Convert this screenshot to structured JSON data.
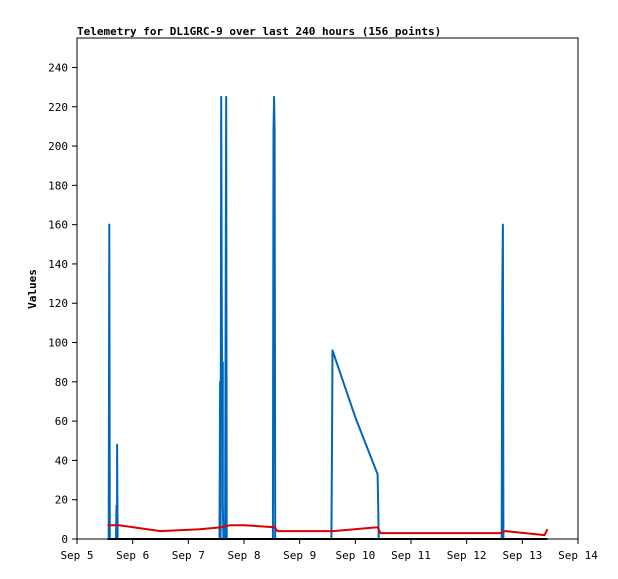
{
  "chart_data": {
    "type": "line",
    "title": "Telemetry for DL1GRC-9 over last 240 hours (156 points)",
    "xlabel": "",
    "ylabel": "Values",
    "ylim": [
      0,
      255
    ],
    "xlim": [
      0,
      9
    ],
    "y_ticks": [
      0,
      20,
      40,
      60,
      80,
      100,
      120,
      140,
      160,
      180,
      200,
      220,
      240
    ],
    "x_ticks": [
      {
        "value": 0,
        "label": "Sep 5"
      },
      {
        "value": 1,
        "label": "Sep 6"
      },
      {
        "value": 2,
        "label": "Sep 7"
      },
      {
        "value": 3,
        "label": "Sep 8"
      },
      {
        "value": 4,
        "label": "Sep 9"
      },
      {
        "value": 5,
        "label": "Sep 10"
      },
      {
        "value": 6,
        "label": "Sep 11"
      },
      {
        "value": 7,
        "label": "Sep 12"
      },
      {
        "value": 8,
        "label": "Sep 13"
      },
      {
        "value": 9,
        "label": "Sep 14"
      }
    ],
    "grid": false,
    "series": [
      {
        "color": "#0066bb",
        "points": [
          [
            0.57,
            0
          ],
          [
            0.58,
            160
          ],
          [
            0.59,
            0
          ],
          [
            0.7,
            0
          ],
          [
            0.71,
            17
          ],
          [
            0.72,
            0
          ],
          [
            0.72,
            48
          ],
          [
            0.73,
            0
          ],
          [
            2.56,
            0
          ],
          [
            2.57,
            80
          ],
          [
            2.58,
            0
          ],
          [
            2.59,
            225
          ],
          [
            2.6,
            126
          ],
          [
            2.61,
            54
          ],
          [
            2.62,
            90
          ],
          [
            2.62,
            18
          ],
          [
            2.63,
            0
          ],
          [
            2.66,
            0
          ],
          [
            2.67,
            104
          ],
          [
            2.68,
            225
          ],
          [
            2.69,
            0
          ],
          [
            3.52,
            0
          ],
          [
            3.53,
            208
          ],
          [
            3.54,
            225
          ],
          [
            3.55,
            208
          ],
          [
            3.56,
            0
          ],
          [
            4.57,
            0
          ],
          [
            4.58,
            48
          ],
          [
            4.59,
            96
          ],
          [
            5.0,
            62
          ],
          [
            5.4,
            33
          ],
          [
            5.41,
            17
          ],
          [
            5.42,
            0
          ],
          [
            7.63,
            0
          ],
          [
            7.64,
            128
          ],
          [
            7.65,
            160
          ],
          [
            7.66,
            0
          ]
        ]
      },
      {
        "color": "#dd0000",
        "points": [
          [
            0.55,
            7
          ],
          [
            0.75,
            7
          ],
          [
            1.5,
            4
          ],
          [
            2.2,
            5
          ],
          [
            2.6,
            6
          ],
          [
            2.75,
            7
          ],
          [
            3.0,
            7
          ],
          [
            3.55,
            6
          ],
          [
            3.6,
            4
          ],
          [
            4.6,
            4
          ],
          [
            5.4,
            6
          ],
          [
            5.45,
            3
          ],
          [
            7.6,
            3
          ],
          [
            7.7,
            4
          ],
          [
            8.4,
            2
          ],
          [
            8.45,
            5
          ]
        ]
      },
      {
        "color": "#000000",
        "points": [
          [
            0.55,
            0
          ],
          [
            8.45,
            0
          ]
        ]
      }
    ]
  }
}
